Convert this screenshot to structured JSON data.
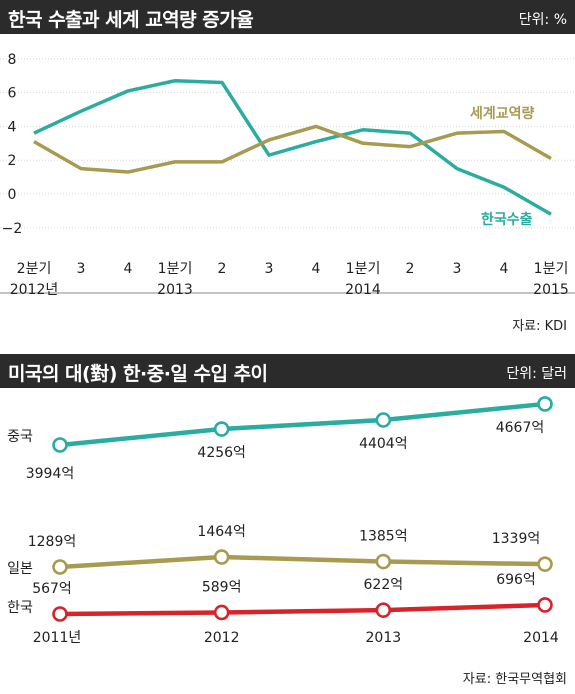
{
  "chart_data": [
    {
      "type": "line",
      "title": "한국 수출과 세계 교역량 증가율",
      "unit": "단위: %",
      "source": "자료: KDI",
      "x": [
        "2분기 2012년",
        "3",
        "4",
        "1분기 2013",
        "2",
        "3",
        "4",
        "1분기 2014",
        "2",
        "3",
        "4",
        "1분기 2015"
      ],
      "x_tick_lines": [
        [
          "2분기",
          "2012년"
        ],
        [
          "3"
        ],
        [
          "4"
        ],
        [
          "1분기",
          "2013"
        ],
        [
          "2"
        ],
        [
          "3"
        ],
        [
          "4"
        ],
        [
          "1분기",
          "2014"
        ],
        [
          "2"
        ],
        [
          "3"
        ],
        [
          "4"
        ],
        [
          "1분기",
          "2015"
        ]
      ],
      "yticks": [
        -2,
        0,
        2,
        4,
        6,
        8
      ],
      "ylim": [
        -2,
        8
      ],
      "grid": "horizontal",
      "series": [
        {
          "name": "한국수출",
          "color": "#2aada0",
          "values": [
            3.6,
            4.9,
            6.1,
            6.7,
            6.6,
            2.3,
            3.1,
            3.8,
            3.6,
            1.5,
            0.4,
            -1.2
          ]
        },
        {
          "name": "세계교역량",
          "color": "#a99a52",
          "values": [
            3.1,
            1.5,
            1.3,
            1.9,
            1.9,
            3.2,
            4.0,
            3.0,
            2.8,
            3.6,
            3.7,
            2.1
          ]
        }
      ]
    },
    {
      "type": "line",
      "title": "미국의 대(對) 한·중·일 수입 추이",
      "unit": "단위: 달러",
      "source": "자료: 한국무역협회",
      "categories": [
        "2011년",
        "2012",
        "2013",
        "2014"
      ],
      "series": [
        {
          "name": "중국",
          "color": "#2aada0",
          "values": [
            3994,
            4256,
            4404,
            4667
          ],
          "labels": [
            "3994억",
            "4256억",
            "4404억",
            "4667억"
          ]
        },
        {
          "name": "일본",
          "color": "#a99a52",
          "values": [
            1289,
            1464,
            1385,
            1339
          ],
          "labels": [
            "1289억",
            "1464억",
            "1385억",
            "1339억"
          ]
        },
        {
          "name": "한국",
          "color": "#d8232a",
          "values": [
            567,
            589,
            622,
            696
          ],
          "labels": [
            "567억",
            "589억",
            "622억",
            "696억"
          ]
        }
      ]
    }
  ]
}
